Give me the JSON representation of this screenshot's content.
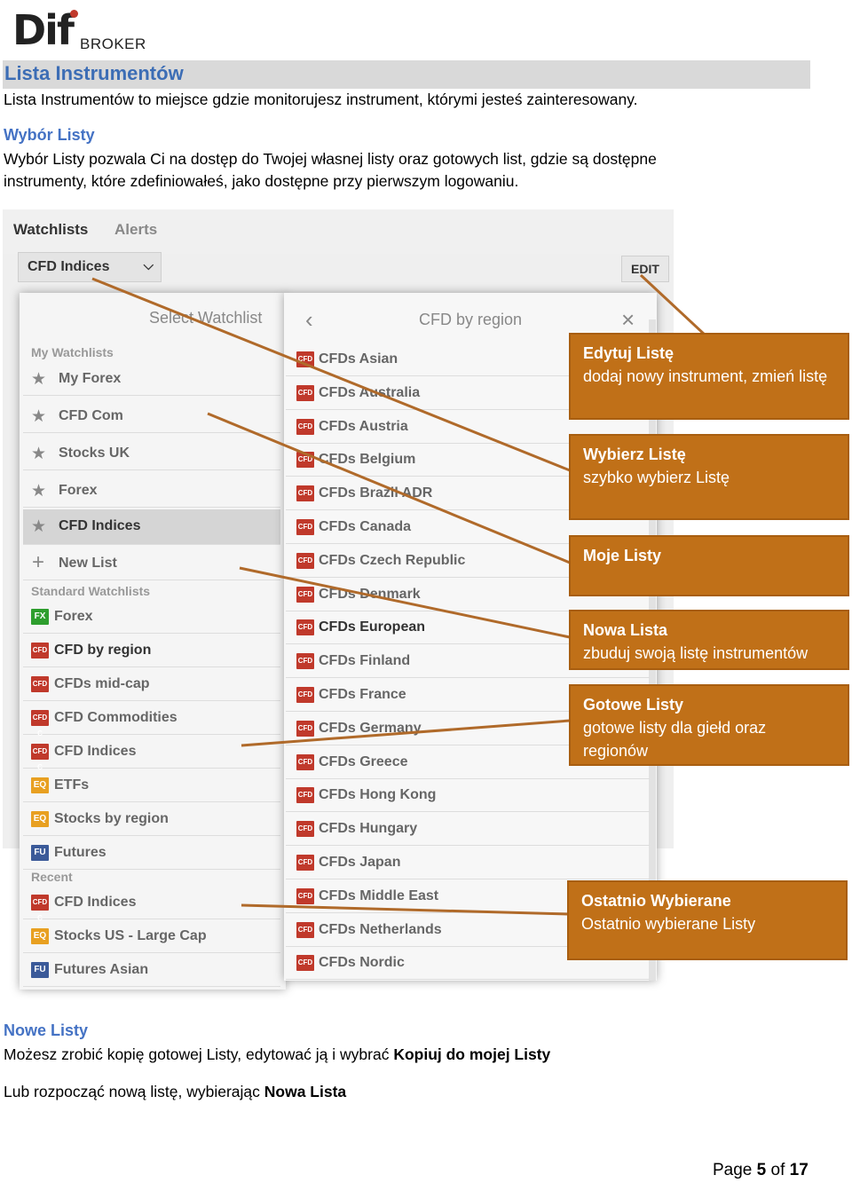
{
  "logo": {
    "mark": "Dif",
    "sub": "BROKER"
  },
  "title": "Lista Instrumentów",
  "intro": "Lista Instrumentów to miejsce gdzie monitorujesz instrument, którymi jesteś zainteresowany.",
  "section1": {
    "heading": "Wybór Listy",
    "line1": "Wybór Listy pozwala Ci na dostęp do Twojej własnej listy oraz gotowych list, gdzie są dostępne",
    "line2": "instrumenty, które zdefiniowałeś, jako dostępne przy pierwszym logowaniu."
  },
  "screenshot": {
    "tabs": {
      "watchlists": "Watchlists",
      "alerts": "Alerts"
    },
    "dropdown": "CFD Indices",
    "edit": "EDIT",
    "left_panel": {
      "title": "Select Watchlist",
      "my_header": "My Watchlists",
      "my_items": [
        "My Forex",
        "CFD Com",
        "Stocks UK",
        "Forex",
        "CFD Indices"
      ],
      "new_list": "New List",
      "std_header": "Standard Watchlists",
      "std_items": [
        {
          "badge": "FX",
          "label": "Forex"
        },
        {
          "badge": "CFD",
          "label": "CFD by region"
        },
        {
          "badge": "CFD",
          "label": "CFDs mid-cap"
        },
        {
          "badge": "CFD C",
          "label": "CFD Commodities"
        },
        {
          "badge": "CFD C",
          "label": "CFD Indices"
        },
        {
          "badge": "EQ",
          "label": "ETFs"
        },
        {
          "badge": "EQ",
          "label": "Stocks by region"
        },
        {
          "badge": "FU",
          "label": "Futures"
        }
      ],
      "recent_header": "Recent",
      "recent_items": [
        {
          "badge": "CFD C",
          "label": "CFD Indices"
        },
        {
          "badge": "EQ",
          "label": "Stocks US - Large Cap"
        },
        {
          "badge": "FU",
          "label": "Futures Asian"
        }
      ]
    },
    "right_panel": {
      "back": "‹",
      "title": "CFD by region",
      "close": "×",
      "badge": "CFD",
      "items": [
        "CFDs Asian",
        "CFDs Australia",
        "CFDs Austria",
        "CFDs Belgium",
        "CFDs Brazil ADR",
        "CFDs Canada",
        "CFDs Czech Republic",
        "CFDs Denmark",
        "CFDs European",
        "CFDs Finland",
        "CFDs France",
        "CFDs Germany",
        "CFDs Greece",
        "CFDs Hong Kong",
        "CFDs Hungary",
        "CFDs Japan",
        "CFDs Middle East",
        "CFDs Netherlands",
        "CFDs Nordic"
      ]
    }
  },
  "callouts": [
    {
      "title": "Edytuj Listę",
      "body": "dodaj nowy instrument, zmień listę"
    },
    {
      "title": "Wybierz Listę",
      "body": "szybko wybierz Listę"
    },
    {
      "title": "Moje Listy",
      "body": ""
    },
    {
      "title": "Nowa Lista",
      "body": "zbuduj swoją listę instrumentów"
    },
    {
      "title": "Gotowe Listy",
      "body": "gotowe listy dla giełd oraz regionów"
    },
    {
      "title": "Ostatnio Wybierane",
      "body": "Ostatnio wybierane Listy"
    }
  ],
  "section2": {
    "heading": "Nowe Listy",
    "line1_pre": "Możesz zrobić kopię gotowej Listy, edytować ją i wybrać ",
    "line1_bold": "Kopiuj do mojej Listy",
    "line2_pre": "Lub rozpocząć nową listę, wybierając ",
    "line2_bold": "Nowa Lista"
  },
  "pager": {
    "pre": "Page ",
    "current": "5",
    "mid": " of ",
    "total": "17"
  },
  "colors": {
    "accent": "#4472c4",
    "callout": "#c07018",
    "line": "#b06a2a"
  }
}
